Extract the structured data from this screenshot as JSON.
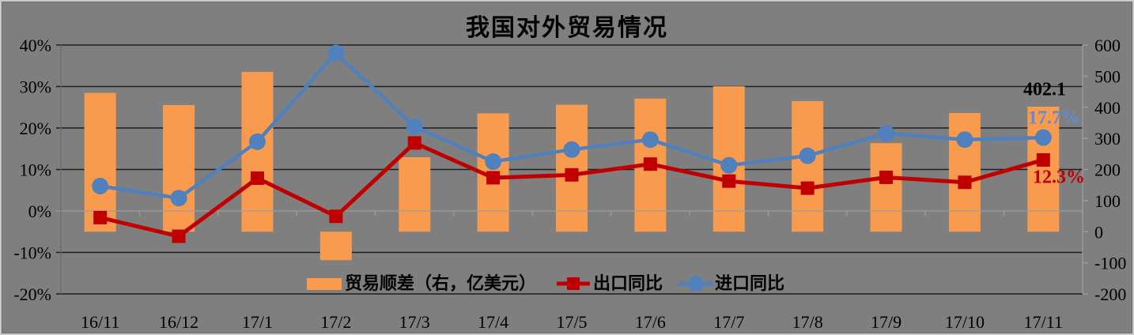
{
  "title": "我国对外贸易情况",
  "legend": {
    "surplus": "贸易顺差（右，亿美元）",
    "export": "出口同比",
    "import": "进口同比"
  },
  "annotations": {
    "surplus_value": "402.1",
    "import_value": "17.7%",
    "export_value": "12.3%"
  },
  "chart_data": {
    "type": "combo-bar-line",
    "title": "我国对外贸易情况",
    "categories": [
      "16/11",
      "16/12",
      "17/1",
      "17/2",
      "17/3",
      "17/4",
      "17/5",
      "17/6",
      "17/7",
      "17/8",
      "17/9",
      "17/10",
      "17/11"
    ],
    "series": [
      {
        "name": "贸易顺差（右，亿美元）",
        "type": "bar",
        "axis": "right",
        "unit": "亿美元",
        "color": "#f89b4f",
        "values": [
          446.1,
          407.1,
          513.5,
          -91.5,
          239.3,
          380.5,
          408.1,
          427.7,
          467.4,
          419.9,
          284.7,
          381.7,
          402.1
        ]
      },
      {
        "name": "出口同比",
        "type": "line",
        "axis": "left",
        "unit": "%",
        "color": "#c00000",
        "marker": "square",
        "values": [
          -1.6,
          -6.1,
          7.9,
          -1.3,
          16.4,
          8.0,
          8.7,
          11.3,
          7.2,
          5.5,
          8.1,
          6.9,
          12.3
        ]
      },
      {
        "name": "进口同比",
        "type": "line",
        "axis": "left",
        "unit": "%",
        "color": "#5081bd",
        "marker": "circle",
        "values": [
          6.0,
          3.1,
          16.7,
          38.1,
          20.3,
          11.9,
          14.8,
          17.2,
          11.0,
          13.3,
          18.7,
          17.2,
          17.7
        ]
      }
    ],
    "left_axis": {
      "tick_labels": [
        "40%",
        "30%",
        "20%",
        "10%",
        "0%",
        "-10%",
        "-20%"
      ],
      "tick_values": [
        40,
        30,
        20,
        10,
        0,
        -10,
        -20
      ],
      "min": -20,
      "max": 40
    },
    "right_axis": {
      "tick_labels": [
        "600",
        "500",
        "400",
        "300",
        "200",
        "100",
        "0",
        "-100",
        "-200"
      ],
      "tick_values": [
        600,
        500,
        400,
        300,
        200,
        100,
        0,
        -100,
        -200
      ],
      "min": -200,
      "max": 600
    },
    "annotations": [
      {
        "text": "402.1",
        "series": "贸易顺差（右，亿美元）",
        "category": "17/11",
        "color": "#000000"
      },
      {
        "text": "17.7%",
        "series": "进口同比",
        "category": "17/11",
        "color": "#5b8ed6"
      },
      {
        "text": "12.3%",
        "series": "出口同比",
        "category": "17/11",
        "color": "#c00000"
      }
    ],
    "grid": "horizontal gridlines every 10% (black), 0% axis line light gray",
    "legend_position": "bottom-center",
    "background_color": "#7f7f7f"
  }
}
